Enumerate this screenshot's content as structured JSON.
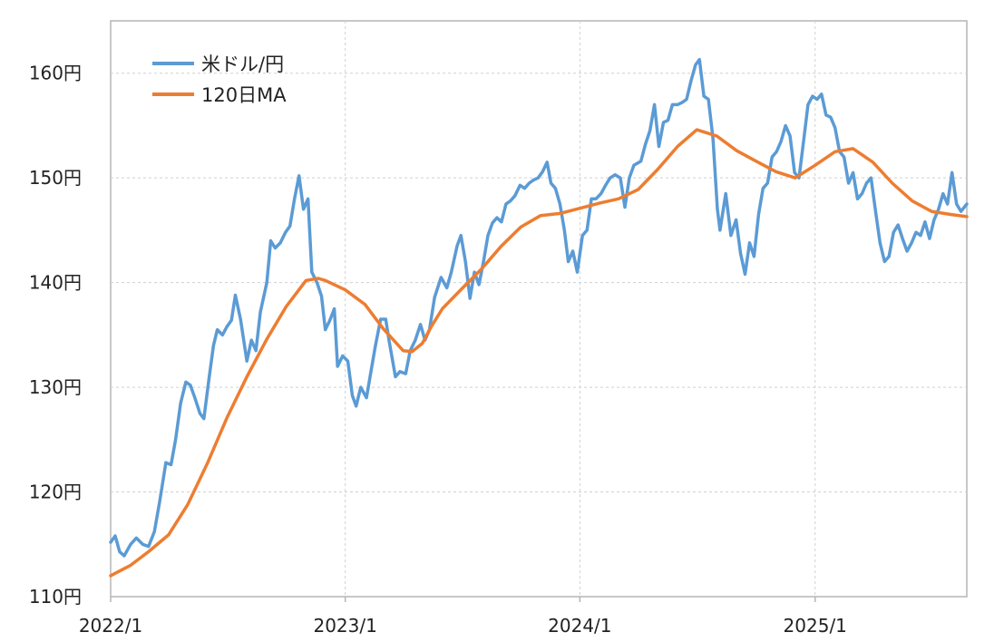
{
  "chart_data": {
    "type": "line",
    "title": "",
    "xlabel": "",
    "ylabel": "",
    "ylim": [
      110,
      165
    ],
    "y_ticks": [
      {
        "value": 110,
        "label": "110円"
      },
      {
        "value": 120,
        "label": "120円"
      },
      {
        "value": 130,
        "label": "130円"
      },
      {
        "value": 140,
        "label": "140円"
      },
      {
        "value": 150,
        "label": "150円"
      },
      {
        "value": 160,
        "label": "160円"
      }
    ],
    "xlim": [
      "2022-01-01",
      "2025-08-25"
    ],
    "x_ticks": [
      {
        "value": "2022-01-01",
        "label": "2022/1"
      },
      {
        "value": "2023-01-01",
        "label": "2023/1"
      },
      {
        "value": "2024-01-01",
        "label": "2024/1"
      },
      {
        "value": "2025-01-01",
        "label": "2025/1"
      }
    ],
    "grid": true,
    "legend_position": "top-left",
    "series": [
      {
        "name": "米ドル/円",
        "color": "#5b9bd5",
        "points": [
          [
            "2022-01-01",
            115.2
          ],
          [
            "2022-01-08",
            115.8
          ],
          [
            "2022-01-15",
            114.3
          ],
          [
            "2022-01-22",
            113.9
          ],
          [
            "2022-02-01",
            115.0
          ],
          [
            "2022-02-10",
            115.6
          ],
          [
            "2022-02-20",
            115.0
          ],
          [
            "2022-03-01",
            114.8
          ],
          [
            "2022-03-10",
            116.2
          ],
          [
            "2022-03-18",
            119.0
          ],
          [
            "2022-03-28",
            122.8
          ],
          [
            "2022-04-05",
            122.6
          ],
          [
            "2022-04-12",
            125.0
          ],
          [
            "2022-04-20",
            128.5
          ],
          [
            "2022-04-28",
            130.5
          ],
          [
            "2022-05-05",
            130.2
          ],
          [
            "2022-05-12",
            129.0
          ],
          [
            "2022-05-20",
            127.5
          ],
          [
            "2022-05-26",
            127.0
          ],
          [
            "2022-06-03",
            130.8
          ],
          [
            "2022-06-10",
            134.0
          ],
          [
            "2022-06-16",
            135.5
          ],
          [
            "2022-06-24",
            135.0
          ],
          [
            "2022-07-01",
            135.8
          ],
          [
            "2022-07-08",
            136.4
          ],
          [
            "2022-07-14",
            138.8
          ],
          [
            "2022-07-22",
            136.5
          ],
          [
            "2022-08-01",
            132.5
          ],
          [
            "2022-08-08",
            134.5
          ],
          [
            "2022-08-15",
            133.5
          ],
          [
            "2022-08-22",
            137.2
          ],
          [
            "2022-09-01",
            140.0
          ],
          [
            "2022-09-07",
            144.0
          ],
          [
            "2022-09-14",
            143.3
          ],
          [
            "2022-09-22",
            143.8
          ],
          [
            "2022-09-30",
            144.8
          ],
          [
            "2022-10-07",
            145.4
          ],
          [
            "2022-10-14",
            148.0
          ],
          [
            "2022-10-21",
            150.2
          ],
          [
            "2022-10-28",
            147.0
          ],
          [
            "2022-11-04",
            148.0
          ],
          [
            "2022-11-10",
            141.0
          ],
          [
            "2022-11-18",
            140.0
          ],
          [
            "2022-11-25",
            138.7
          ],
          [
            "2022-12-01",
            135.5
          ],
          [
            "2022-12-08",
            136.4
          ],
          [
            "2022-12-15",
            137.5
          ],
          [
            "2022-12-20",
            132.0
          ],
          [
            "2022-12-28",
            133.0
          ],
          [
            "2023-01-05",
            132.5
          ],
          [
            "2023-01-12",
            129.2
          ],
          [
            "2023-01-18",
            128.2
          ],
          [
            "2023-01-25",
            130.0
          ],
          [
            "2023-02-03",
            129.0
          ],
          [
            "2023-02-10",
            131.5
          ],
          [
            "2023-02-17",
            134.0
          ],
          [
            "2023-02-25",
            136.5
          ],
          [
            "2023-03-05",
            136.5
          ],
          [
            "2023-03-10",
            134.5
          ],
          [
            "2023-03-20",
            131.0
          ],
          [
            "2023-03-27",
            131.5
          ],
          [
            "2023-04-05",
            131.3
          ],
          [
            "2023-04-12",
            133.5
          ],
          [
            "2023-04-20",
            134.5
          ],
          [
            "2023-04-28",
            136.0
          ],
          [
            "2023-05-05",
            134.5
          ],
          [
            "2023-05-12",
            135.5
          ],
          [
            "2023-05-20",
            138.6
          ],
          [
            "2023-05-30",
            140.5
          ],
          [
            "2023-06-08",
            139.5
          ],
          [
            "2023-06-15",
            141.0
          ],
          [
            "2023-06-24",
            143.5
          ],
          [
            "2023-06-30",
            144.5
          ],
          [
            "2023-07-07",
            142.0
          ],
          [
            "2023-07-14",
            138.5
          ],
          [
            "2023-07-21",
            141.0
          ],
          [
            "2023-07-28",
            139.8
          ],
          [
            "2023-08-04",
            142.0
          ],
          [
            "2023-08-11",
            144.5
          ],
          [
            "2023-08-18",
            145.7
          ],
          [
            "2023-08-25",
            146.2
          ],
          [
            "2023-09-01",
            145.8
          ],
          [
            "2023-09-08",
            147.5
          ],
          [
            "2023-09-15",
            147.8
          ],
          [
            "2023-09-22",
            148.3
          ],
          [
            "2023-09-30",
            149.3
          ],
          [
            "2023-10-07",
            149.0
          ],
          [
            "2023-10-14",
            149.5
          ],
          [
            "2023-10-21",
            149.8
          ],
          [
            "2023-10-28",
            150.0
          ],
          [
            "2023-11-04",
            150.6
          ],
          [
            "2023-11-11",
            151.5
          ],
          [
            "2023-11-17",
            149.5
          ],
          [
            "2023-11-24",
            149.0
          ],
          [
            "2023-12-01",
            147.5
          ],
          [
            "2023-12-08",
            145.0
          ],
          [
            "2023-12-14",
            142.0
          ],
          [
            "2023-12-21",
            143.0
          ],
          [
            "2023-12-28",
            141.0
          ],
          [
            "2024-01-05",
            144.5
          ],
          [
            "2024-01-12",
            145.0
          ],
          [
            "2024-01-19",
            148.0
          ],
          [
            "2024-01-26",
            148.0
          ],
          [
            "2024-02-03",
            148.5
          ],
          [
            "2024-02-10",
            149.3
          ],
          [
            "2024-02-17",
            150.0
          ],
          [
            "2024-02-25",
            150.3
          ],
          [
            "2024-03-04",
            150.0
          ],
          [
            "2024-03-11",
            147.2
          ],
          [
            "2024-03-18",
            150.0
          ],
          [
            "2024-03-25",
            151.2
          ],
          [
            "2024-04-05",
            151.6
          ],
          [
            "2024-04-12",
            153.2
          ],
          [
            "2024-04-19",
            154.5
          ],
          [
            "2024-04-26",
            157.0
          ],
          [
            "2024-05-03",
            153.0
          ],
          [
            "2024-05-10",
            155.3
          ],
          [
            "2024-05-17",
            155.5
          ],
          [
            "2024-05-24",
            157.0
          ],
          [
            "2024-06-01",
            157.0
          ],
          [
            "2024-06-08",
            157.2
          ],
          [
            "2024-06-15",
            157.5
          ],
          [
            "2024-06-22",
            159.3
          ],
          [
            "2024-06-29",
            160.8
          ],
          [
            "2024-07-05",
            161.3
          ],
          [
            "2024-07-12",
            157.8
          ],
          [
            "2024-07-19",
            157.5
          ],
          [
            "2024-07-26",
            153.8
          ],
          [
            "2024-08-02",
            147.0
          ],
          [
            "2024-08-06",
            145.0
          ],
          [
            "2024-08-15",
            148.5
          ],
          [
            "2024-08-23",
            144.5
          ],
          [
            "2024-08-31",
            146.0
          ],
          [
            "2024-09-07",
            142.8
          ],
          [
            "2024-09-14",
            140.8
          ],
          [
            "2024-09-21",
            143.8
          ],
          [
            "2024-09-28",
            142.5
          ],
          [
            "2024-10-05",
            146.5
          ],
          [
            "2024-10-12",
            149.0
          ],
          [
            "2024-10-19",
            149.5
          ],
          [
            "2024-10-26",
            152.0
          ],
          [
            "2024-11-02",
            152.5
          ],
          [
            "2024-11-09",
            153.5
          ],
          [
            "2024-11-16",
            155.0
          ],
          [
            "2024-11-23",
            154.0
          ],
          [
            "2024-11-30",
            150.5
          ],
          [
            "2024-12-07",
            150.0
          ],
          [
            "2024-12-14",
            153.5
          ],
          [
            "2024-12-21",
            157.0
          ],
          [
            "2024-12-28",
            157.8
          ],
          [
            "2025-01-04",
            157.5
          ],
          [
            "2025-01-11",
            158.0
          ],
          [
            "2025-01-18",
            156.0
          ],
          [
            "2025-01-25",
            155.8
          ],
          [
            "2025-02-01",
            154.8
          ],
          [
            "2025-02-08",
            152.5
          ],
          [
            "2025-02-15",
            152.0
          ],
          [
            "2025-02-22",
            149.5
          ],
          [
            "2025-03-01",
            150.5
          ],
          [
            "2025-03-08",
            148.0
          ],
          [
            "2025-03-15",
            148.5
          ],
          [
            "2025-03-22",
            149.5
          ],
          [
            "2025-03-29",
            150.0
          ],
          [
            "2025-04-05",
            146.8
          ],
          [
            "2025-04-12",
            143.8
          ],
          [
            "2025-04-19",
            142.0
          ],
          [
            "2025-04-26",
            142.5
          ],
          [
            "2025-05-03",
            144.8
          ],
          [
            "2025-05-10",
            145.5
          ],
          [
            "2025-05-17",
            144.2
          ],
          [
            "2025-05-24",
            143.0
          ],
          [
            "2025-05-31",
            143.8
          ],
          [
            "2025-06-07",
            144.8
          ],
          [
            "2025-06-14",
            144.5
          ],
          [
            "2025-06-21",
            145.8
          ],
          [
            "2025-06-28",
            144.2
          ],
          [
            "2025-07-05",
            146.0
          ],
          [
            "2025-07-12",
            147.0
          ],
          [
            "2025-07-19",
            148.5
          ],
          [
            "2025-07-26",
            147.5
          ],
          [
            "2025-08-02",
            150.5
          ],
          [
            "2025-08-09",
            147.5
          ],
          [
            "2025-08-16",
            146.8
          ],
          [
            "2025-08-25",
            147.5
          ]
        ]
      },
      {
        "name": "120日MA",
        "color": "#ed7d31",
        "points": [
          [
            "2022-01-01",
            112.0
          ],
          [
            "2022-02-01",
            113.0
          ],
          [
            "2022-03-01",
            114.3
          ],
          [
            "2022-04-01",
            115.9
          ],
          [
            "2022-05-01",
            118.8
          ],
          [
            "2022-06-01",
            122.8
          ],
          [
            "2022-07-01",
            127.1
          ],
          [
            "2022-08-01",
            131.0
          ],
          [
            "2022-09-01",
            134.6
          ],
          [
            "2022-10-01",
            137.7
          ],
          [
            "2022-11-01",
            140.2
          ],
          [
            "2022-11-20",
            140.4
          ],
          [
            "2022-12-01",
            140.2
          ],
          [
            "2023-01-01",
            139.3
          ],
          [
            "2023-02-01",
            137.9
          ],
          [
            "2023-03-01",
            135.6
          ],
          [
            "2023-04-01",
            133.5
          ],
          [
            "2023-04-15",
            133.4
          ],
          [
            "2023-05-01",
            134.2
          ],
          [
            "2023-05-15",
            135.8
          ],
          [
            "2023-06-01",
            137.5
          ],
          [
            "2023-07-01",
            139.4
          ],
          [
            "2023-08-01",
            141.3
          ],
          [
            "2023-09-01",
            143.5
          ],
          [
            "2023-10-01",
            145.3
          ],
          [
            "2023-11-01",
            146.4
          ],
          [
            "2023-12-01",
            146.6
          ],
          [
            "2024-01-01",
            147.1
          ],
          [
            "2024-02-01",
            147.6
          ],
          [
            "2024-03-01",
            148.0
          ],
          [
            "2024-04-01",
            148.9
          ],
          [
            "2024-05-01",
            150.8
          ],
          [
            "2024-06-01",
            153.0
          ],
          [
            "2024-07-01",
            154.6
          ],
          [
            "2024-08-01",
            154.0
          ],
          [
            "2024-09-01",
            152.6
          ],
          [
            "2024-10-01",
            151.6
          ],
          [
            "2024-11-01",
            150.6
          ],
          [
            "2024-12-01",
            150.0
          ],
          [
            "2025-01-01",
            151.2
          ],
          [
            "2025-02-01",
            152.5
          ],
          [
            "2025-03-01",
            152.8
          ],
          [
            "2025-04-01",
            151.5
          ],
          [
            "2025-05-01",
            149.5
          ],
          [
            "2025-06-01",
            147.8
          ],
          [
            "2025-07-01",
            146.8
          ],
          [
            "2025-08-01",
            146.5
          ],
          [
            "2025-08-25",
            146.3
          ]
        ]
      }
    ]
  }
}
